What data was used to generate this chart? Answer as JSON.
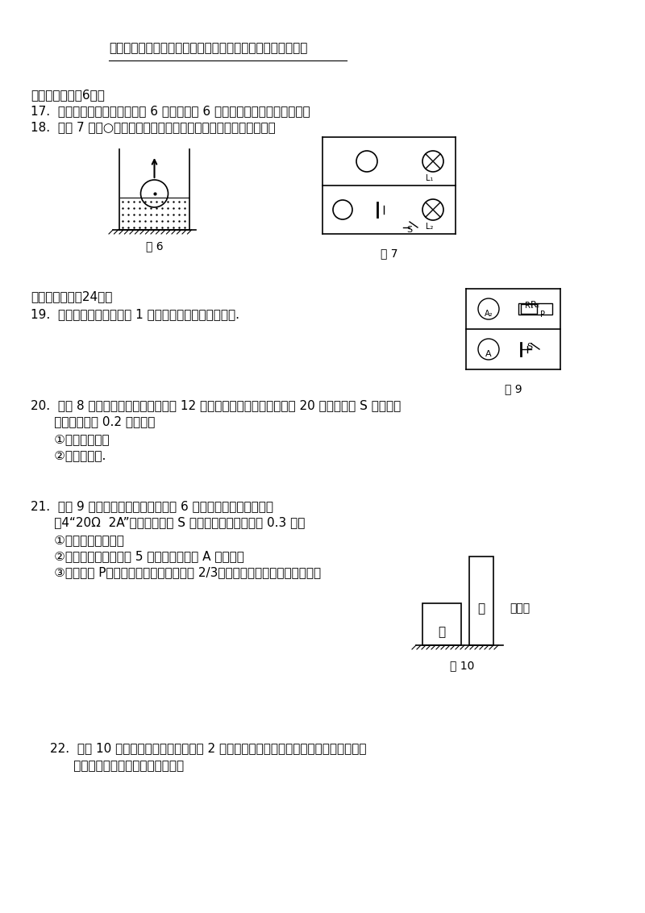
{
  "bg_color": "#ffffff",
  "text_color": "#000000",
  "line1": "请根据相关信息，写出替换后所看到的的现象及相应的故障。",
  "section3_title": "三、作图题（兲6分）",
  "q17": "17.  浮在水面的小球所受浮力为 6 牛，请在图 6 中用力的图示法画出该浮力。",
  "q18": "18.  在图 7 中的○里填上适当的电表符号，使之成为正确的电路图。",
  "fig6_label": "图 6",
  "fig7_label": "图 7",
  "fig9_label": "图 9",
  "section4_title": "四、计算题（共24分）",
  "q19": "19.  某游泳池水区的水深为 1 米，求水对该处池底的压强.",
  "q20_line1": "20.  如图 8 所示的电路中，电源电压为 12 伏且保持不变，电阵的阱値为 20 欧。当电键 S 闭合后，",
  "q20_line2": "      通过的电流为 0.2 安。求：",
  "q20_sub1": "      ①两端的电压；",
  "q20_sub2": "      ②电阵的阱値.",
  "q21_line1": "21.  如图 9 所示的电路中，电源电压为 6 伏且保持不变，滑动变阵",
  "q21_line2": "      有4“20Ω  2A”字样。当电键 S 闭合后，通过的电流为 0.3 安。",
  "q21_sub1": "      ①求消耗的电功率；",
  "q21_sub2": "      ②当连入电路的阱値为 5 欧时，求电流表 A 的示数；",
  "q21_sub3": "      ③移动滑片 P，两电流表示数的比値变为 2/3。请计算此时连入电路的阱値。",
  "q21_aside": "器上标",
  "fig10_label": "图 10",
  "q22_line1": "22.  如图 10 所示，甲、乙两个质量均为 2 千克的实心均匀圆柱体放在水平地面上。甲的",
  "q22_line2": "      底面积为米，乙的体积为米。求："
}
